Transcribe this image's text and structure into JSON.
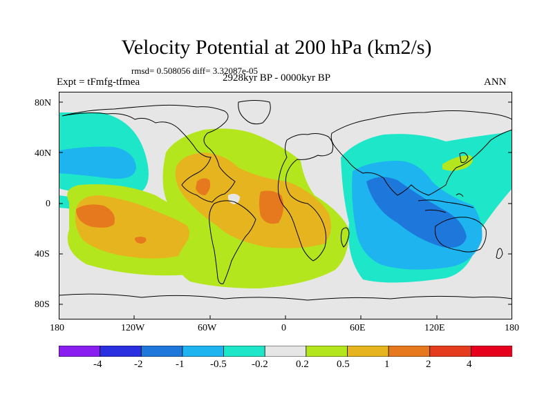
{
  "title": "Velocity Potential at 200 hPa (km2/s)",
  "stats_text": "rmsd= 0.508056 diff= 3.32087e-05",
  "experiment": "Expt = tFmfg-tfmea",
  "period": "2928kyr BP - 0000kyr BP",
  "season": "ANN",
  "lat_labels": [
    "80N",
    "40N",
    "0",
    "40S",
    "80S"
  ],
  "lon_labels": [
    "180",
    "120W",
    "60W",
    "0",
    "60E",
    "120E",
    "180"
  ],
  "colorbar": {
    "labels": [
      "-4",
      "-2",
      "-1",
      "-0.5",
      "-0.2",
      "0.2",
      "0.5",
      "1",
      "2",
      "4"
    ],
    "colors": [
      "#8a1ef0",
      "#2a30e0",
      "#1e78dc",
      "#1eb4f0",
      "#1ee6c8",
      "#e6e6e6",
      "#b4e61e",
      "#e6b41e",
      "#e6781e",
      "#e63c1e",
      "#e6001e"
    ]
  },
  "fill_colors": {
    "neutral": "#e6e6e6",
    "neg_1": "#1ee6c8",
    "neg_2": "#1eb4f0",
    "neg_3": "#1e78dc",
    "pos_1": "#b4e61e",
    "pos_2": "#e6b41e",
    "pos_3": "#e6781e"
  }
}
